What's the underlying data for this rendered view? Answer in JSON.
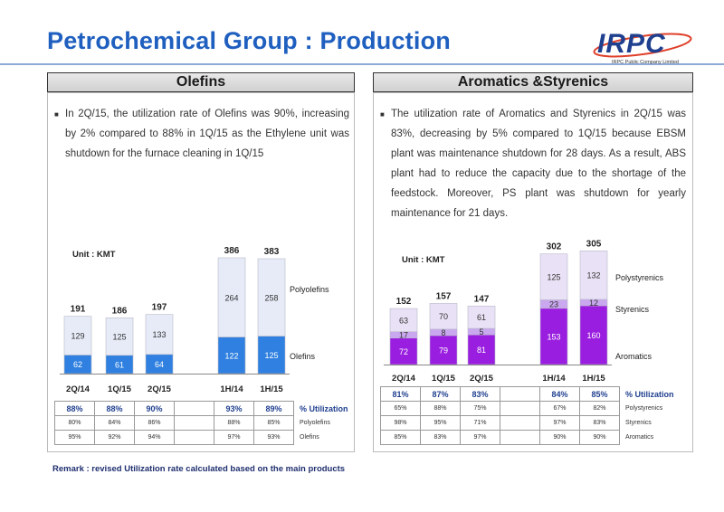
{
  "title": "Petrochemical Group : Production",
  "logo": {
    "mark": "IRPC",
    "tagline": "IRPC Public Company Limited"
  },
  "olefins": {
    "header": "Olefins",
    "text": "In 2Q/15, the utilization rate of Olefins was 90%, increasing by 2% compared to 88% in  1Q/15 as the Ethylene unit was shutdown for the furnace cleaning in 1Q/15",
    "unit": "Unit : KMT",
    "util_label": "% Utilization",
    "rows": [
      {
        "label": "% Utilization",
        "values": [
          "88%",
          "88%",
          "90%",
          "",
          "93%",
          "89%"
        ]
      },
      {
        "label": "Polyolefins",
        "values": [
          "80%",
          "84%",
          "86%",
          "",
          "88%",
          "85%"
        ]
      },
      {
        "label": "Olefins",
        "values": [
          "95%",
          "92%",
          "94%",
          "",
          "97%",
          "93%"
        ]
      }
    ]
  },
  "aromatics": {
    "header": "Aromatics &Styrenics",
    "text": "The utilization rate of Aromatics and Styrenics in 2Q/15 was 83%,  decreasing by 5% compared to 1Q/15 because EBSM plant was maintenance shutdown for 28 days. As a result, ABS plant had to reduce the capacity due to the shortage of the feedstock. Moreover, PS plant was shutdown for yearly maintenance for 21 days.",
    "unit": "Unit : KMT",
    "rows": [
      {
        "label": "% Utilization",
        "values": [
          "81%",
          "87%",
          "83%",
          "",
          "84%",
          "85%"
        ]
      },
      {
        "label": "Polystyrenics",
        "values": [
          "65%",
          "88%",
          "75%",
          "",
          "67%",
          "82%"
        ]
      },
      {
        "label": "Styrenics",
        "values": [
          "98%",
          "95%",
          "71%",
          "",
          "97%",
          "83%"
        ]
      },
      {
        "label": "Aromatics",
        "values": [
          "85%",
          "83%",
          "97%",
          "",
          "90%",
          "90%"
        ]
      }
    ]
  },
  "remark": "Remark :  revised  Utilization rate calculated based on the main products",
  "colors": {
    "title": "#1f5fbf",
    "olefins_bar": "#2f80e0",
    "polyolefins_bar": "#e6ebf7",
    "aromatics_bar": "#9a1ee0",
    "styrenics_bar": "#c9a8f0",
    "polystyrenics_bar": "#e9e1f5"
  },
  "chart_data": [
    {
      "type": "bar",
      "stacked": true,
      "categories": [
        "2Q/14",
        "1Q/15",
        "2Q/15",
        "1H/14",
        "1H/15"
      ],
      "series": [
        {
          "name": "Olefins",
          "values": [
            62,
            61,
            64,
            122,
            125
          ]
        },
        {
          "name": "Polyolefins",
          "values": [
            129,
            125,
            133,
            264,
            258
          ]
        }
      ],
      "totals": [
        191,
        186,
        197,
        386,
        383
      ],
      "ylabel": "Unit : KMT",
      "legend": "right"
    },
    {
      "type": "bar",
      "stacked": true,
      "categories": [
        "2Q/14",
        "1Q/15",
        "2Q/15",
        "1H/14",
        "1H/15"
      ],
      "series": [
        {
          "name": "Aromatics",
          "values": [
            72,
            79,
            81,
            153,
            160
          ]
        },
        {
          "name": "Styrenics",
          "values": [
            17,
            8,
            5,
            23,
            12
          ]
        },
        {
          "name": "Polystyrenics",
          "values": [
            63,
            70,
            61,
            125,
            132
          ]
        }
      ],
      "totals": [
        152,
        157,
        147,
        302,
        305
      ],
      "ylabel": "Unit : KMT",
      "legend": "right"
    }
  ]
}
